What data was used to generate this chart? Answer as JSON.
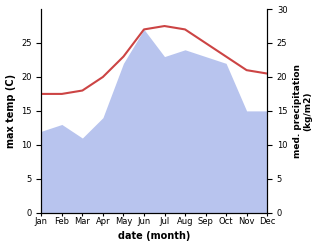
{
  "months": [
    "Jan",
    "Feb",
    "Mar",
    "Apr",
    "May",
    "Jun",
    "Jul",
    "Aug",
    "Sep",
    "Oct",
    "Nov",
    "Dec"
  ],
  "x": [
    1,
    2,
    3,
    4,
    5,
    6,
    7,
    8,
    9,
    10,
    11,
    12
  ],
  "temperature": [
    17.5,
    17.5,
    18.0,
    20.0,
    23.0,
    27.0,
    27.5,
    27.0,
    25.0,
    23.0,
    21.0,
    20.5
  ],
  "precipitation": [
    12.0,
    13.0,
    11.0,
    14.0,
    22.0,
    27.0,
    23.0,
    24.0,
    23.0,
    22.0,
    15.0,
    15.0
  ],
  "temp_color": "#cc4444",
  "precip_color": "#b8c4ee",
  "xlabel": "date (month)",
  "ylabel_left": "max temp (C)",
  "ylabel_right": "med. precipitation\n(kg/m2)",
  "ylim": [
    0,
    30
  ],
  "yticks": [
    0,
    5,
    10,
    15,
    20,
    25,
    30
  ],
  "yticks_left": [
    0,
    5,
    10,
    15,
    20,
    25
  ],
  "background_color": "#ffffff"
}
